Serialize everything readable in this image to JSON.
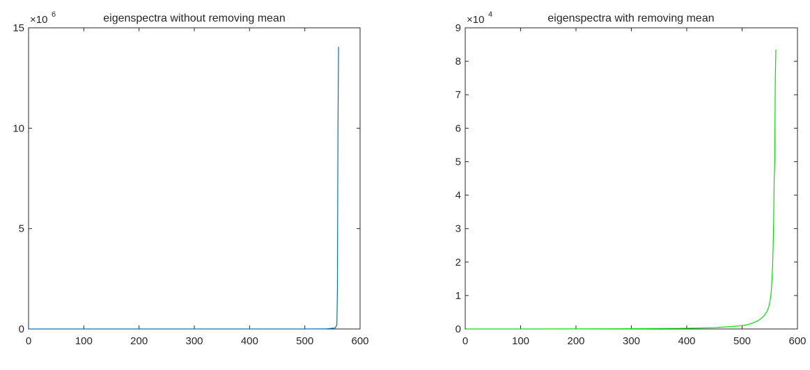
{
  "chart_data": [
    {
      "type": "line",
      "title": "eigenspectra without removing mean",
      "xlabel": "",
      "ylabel": "",
      "xlim": [
        0,
        600
      ],
      "ylim": [
        0,
        15000000
      ],
      "y_exponent_label": "×10",
      "y_exponent": "6",
      "xticks": [
        0,
        100,
        200,
        300,
        400,
        500,
        600
      ],
      "xtick_labels": [
        "0",
        "100",
        "200",
        "300",
        "400",
        "500",
        "600"
      ],
      "yticks": [
        0,
        5000000,
        10000000,
        15000000
      ],
      "ytick_labels": [
        "0",
        "5",
        "10",
        "15"
      ],
      "grid": false,
      "series": [
        {
          "color": "#0072BD",
          "x": [
            1,
            100,
            200,
            300,
            400,
            500,
            540,
            555,
            558,
            559,
            560,
            561
          ],
          "y": [
            0,
            0,
            0,
            0,
            0,
            0,
            10000,
            50000,
            200000,
            2000000,
            10000000,
            14050000
          ]
        }
      ]
    },
    {
      "type": "line",
      "title": "eigenspectra with removing mean",
      "xlabel": "",
      "ylabel": "",
      "xlim": [
        0,
        600
      ],
      "ylim": [
        0,
        90000
      ],
      "y_exponent_label": "×10",
      "y_exponent": "4",
      "xticks": [
        0,
        100,
        200,
        300,
        400,
        500,
        600
      ],
      "xtick_labels": [
        "0",
        "100",
        "200",
        "300",
        "400",
        "500",
        "600"
      ],
      "yticks": [
        0,
        10000,
        20000,
        30000,
        40000,
        50000,
        60000,
        70000,
        80000,
        90000
      ],
      "ytick_labels": [
        "0",
        "1",
        "2",
        "3",
        "4",
        "5",
        "6",
        "7",
        "8",
        "9"
      ],
      "grid": false,
      "series": [
        {
          "color": "#00E000",
          "x": [
            1,
            100,
            200,
            300,
            400,
            450,
            480,
            500,
            510,
            520,
            530,
            535,
            540,
            545,
            548,
            550,
            552,
            553,
            554,
            555,
            556,
            557,
            558,
            559,
            560,
            561
          ],
          "y": [
            0,
            0,
            20,
            80,
            200,
            400,
            700,
            1000,
            1300,
            1800,
            2600,
            3200,
            4000,
            5200,
            6500,
            8000,
            10000,
            12000,
            15000,
            18000,
            24000,
            32000,
            45000,
            50000,
            75000,
            83500
          ]
        }
      ]
    }
  ]
}
